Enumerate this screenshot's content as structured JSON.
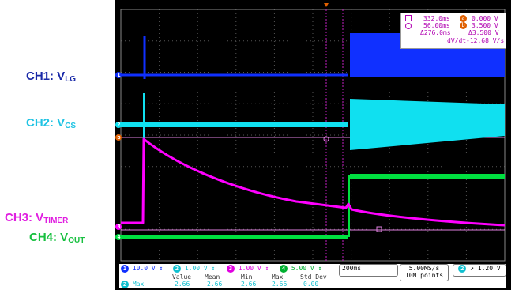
{
  "labels": {
    "ch1": {
      "main": "CH1: V",
      "sub": "LG"
    },
    "ch2": {
      "main": "CH2: V",
      "sub": "CS"
    },
    "ch3": {
      "main": "CH3: V",
      "sub": "TIMER"
    },
    "ch4": {
      "main": "CH4: V",
      "sub": "OUT"
    }
  },
  "colors": {
    "ch1": "#1a2aa8",
    "ch2": "#1fc3e3",
    "ch3": "#e020e0",
    "ch4": "#18c040",
    "ch1_trace": "#1030ff",
    "ch2_trace": "#10e0f0",
    "ch3_trace": "#ff00ff",
    "ch4_trace": "#00e040",
    "cursor": "#e06000"
  },
  "measurements": {
    "t1": "332.0ms",
    "t2": "56.00ms",
    "dt": "Δ276.0ms",
    "v1": "0.000 V",
    "v2": "3.500 V",
    "dv": "Δ3.500 V",
    "dvdt_label": "dV/dt",
    "dvdt": "-12.68 V/s",
    "cursor_a": "a",
    "cursor_b": "b"
  },
  "markers": {
    "ch1": "1",
    "ch2": "2",
    "ch3": "3",
    "ch4": "4",
    "cursor_b": "b"
  },
  "status": {
    "ch1_scale": "10.0 V",
    "ch2_scale": "1.00 V",
    "ch3_scale": "1.00 V",
    "ch4_scale": "5.00 V",
    "ch1_num": "1",
    "ch2_num": "2",
    "ch3_num": "3",
    "ch4_num": "4",
    "bw": "↕",
    "timebase": "200ms",
    "sample_rate": "5.00MS/s",
    "points": "10M points",
    "trig_ch": "2",
    "trig_slope": "↗",
    "trig_level": "1.20 V",
    "stats_headers": [
      "Value",
      "Mean",
      "Min",
      "Max",
      "Std Dev"
    ],
    "stats_row_ch": "2",
    "stats_row_label": "Max",
    "stats_values": [
      "2.66",
      "2.66",
      "2.66",
      "2.66",
      "0.00"
    ]
  }
}
